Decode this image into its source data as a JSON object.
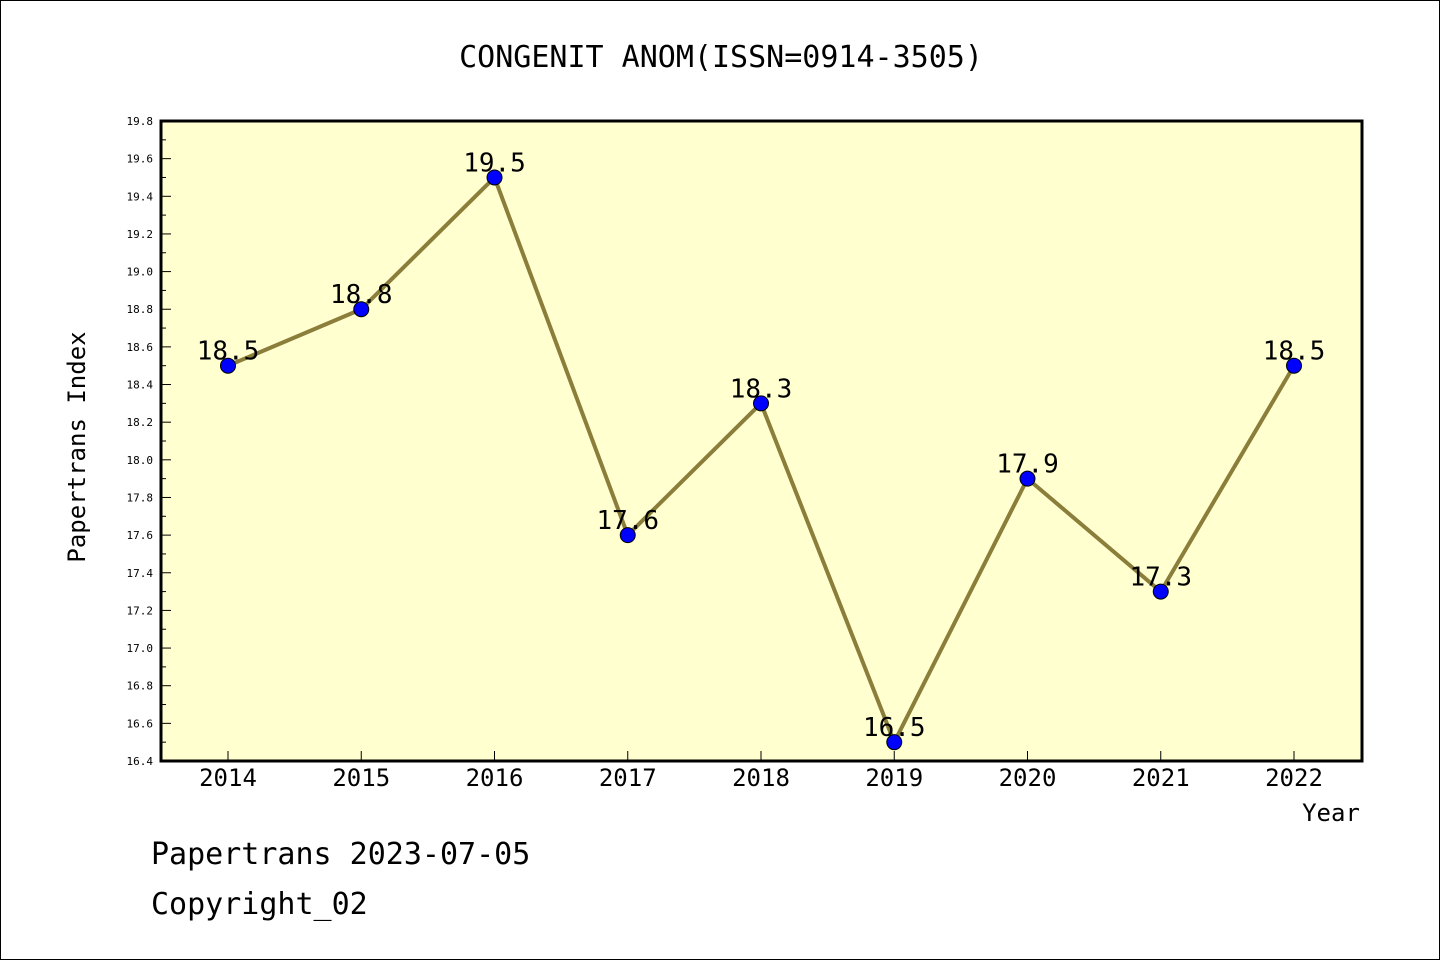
{
  "chart_data": {
    "type": "line",
    "title": "CONGENIT ANOM(ISSN=0914-3505)",
    "xlabel": "Year",
    "ylabel": "Papertrans Index",
    "categories": [
      "2014",
      "2015",
      "2016",
      "2017",
      "2018",
      "2019",
      "2020",
      "2021",
      "2022"
    ],
    "values": [
      18.5,
      18.8,
      19.5,
      17.6,
      18.3,
      16.5,
      17.9,
      17.3,
      18.5
    ],
    "data_labels": [
      "18.5",
      "18.8",
      "19.5",
      "17.6",
      "18.3",
      "16.5",
      "17.9",
      "17.3",
      "18.5"
    ],
    "ylim": [
      16.4,
      19.8
    ],
    "yticks": [
      "16.4",
      "16.6",
      "16.8",
      "17.0",
      "17.2",
      "17.4",
      "17.6",
      "17.8",
      "18.0",
      "18.2",
      "18.4",
      "18.6",
      "18.8",
      "19.0",
      "19.2",
      "19.4",
      "19.6",
      "19.8"
    ],
    "grid": false,
    "legend": "none",
    "colors": {
      "line": "#8b7d3a",
      "marker": "#0000ff",
      "plot_background": "#ffffd0"
    }
  },
  "footer": {
    "line1": "Papertrans 2023-07-05",
    "line2": "Copyright_02"
  }
}
